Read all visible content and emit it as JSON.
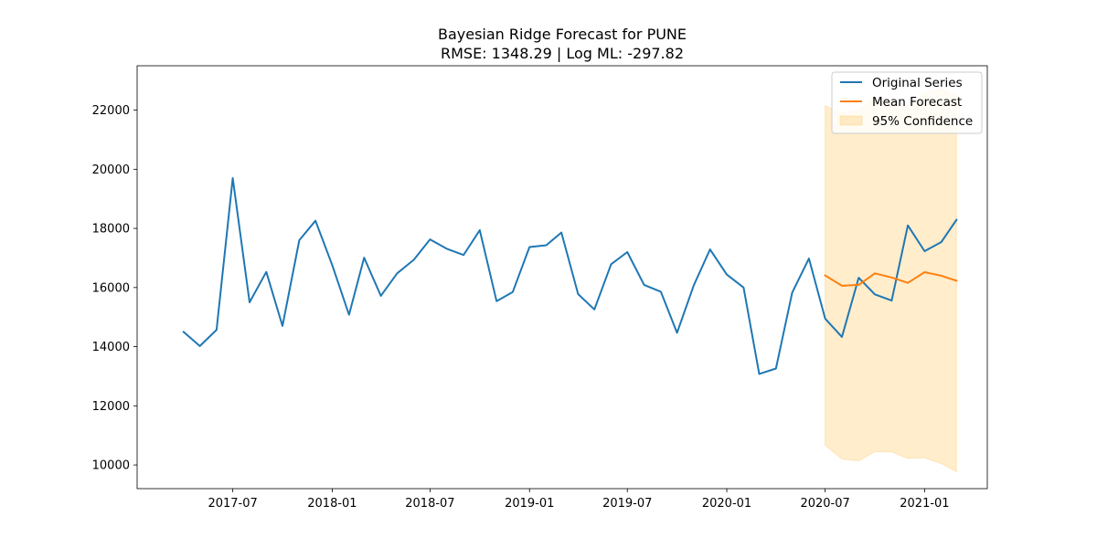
{
  "chart_data": {
    "type": "line",
    "title": "Bayesian Ridge Forecast for PUNE",
    "subtitle": "RMSE: 1348.29 | Log ML: -297.82",
    "xlabel": "",
    "ylabel": "",
    "xlim": [
      "2017-01-05",
      "2021-04-27"
    ],
    "ylim": [
      9200,
      23500
    ],
    "x_ticks": [
      "2017-07-01",
      "2018-01-01",
      "2018-07-01",
      "2019-01-01",
      "2019-07-01",
      "2020-01-01",
      "2020-07-01",
      "2021-01-01"
    ],
    "x_tick_labels": [
      "2017-07",
      "2018-01",
      "2018-07",
      "2019-01",
      "2019-07",
      "2020-01",
      "2020-07",
      "2021-01"
    ],
    "y_ticks": [
      10000,
      12000,
      14000,
      16000,
      18000,
      20000,
      22000
    ],
    "y_tick_labels": [
      "10000",
      "12000",
      "14000",
      "16000",
      "18000",
      "20000",
      "22000"
    ],
    "grid": false,
    "legend_position": "top-right",
    "series": [
      {
        "name": "Original Series",
        "color": "#1f77b4",
        "x": [
          "2017-04-01",
          "2017-05-01",
          "2017-06-01",
          "2017-07-01",
          "2017-08-01",
          "2017-09-01",
          "2017-10-01",
          "2017-11-01",
          "2017-12-01",
          "2018-01-01",
          "2018-02-01",
          "2018-03-01",
          "2018-04-01",
          "2018-05-01",
          "2018-06-01",
          "2018-07-01",
          "2018-08-01",
          "2018-09-01",
          "2018-10-01",
          "2018-11-01",
          "2018-12-01",
          "2019-01-01",
          "2019-02-01",
          "2019-03-01",
          "2019-04-01",
          "2019-05-01",
          "2019-06-01",
          "2019-07-01",
          "2019-08-01",
          "2019-09-01",
          "2019-10-01",
          "2019-11-01",
          "2019-12-01",
          "2020-01-01",
          "2020-02-01",
          "2020-03-01",
          "2020-04-01",
          "2020-05-01",
          "2020-06-01",
          "2020-07-01",
          "2020-08-01",
          "2020-09-01",
          "2020-10-01",
          "2020-11-01",
          "2020-12-01",
          "2021-01-01",
          "2021-02-01",
          "2021-03-01"
        ],
        "values": [
          14500,
          14020,
          14570,
          19700,
          15500,
          16530,
          14700,
          17600,
          18260,
          16760,
          15080,
          17010,
          15720,
          16480,
          16940,
          17630,
          17310,
          17100,
          17940,
          15540,
          15850,
          17370,
          17430,
          17860,
          15780,
          15260,
          16790,
          17200,
          16090,
          15860,
          14470,
          16080,
          17290,
          16440,
          16000,
          13080,
          13260,
          15830,
          16980,
          14950,
          14330,
          16330,
          15770,
          15560,
          18100,
          17230,
          17540,
          18290
        ]
      },
      {
        "name": "Mean Forecast",
        "color": "#ff7f0e",
        "x": [
          "2020-07-01",
          "2020-08-01",
          "2020-09-01",
          "2020-10-01",
          "2020-11-01",
          "2020-12-01",
          "2021-01-01",
          "2021-02-01",
          "2021-03-01"
        ],
        "values": [
          16410,
          16060,
          16090,
          16480,
          16340,
          16160,
          16520,
          16400,
          16230
        ]
      }
    ],
    "confidence_band": {
      "name": "95% Confidence",
      "color": "#ffa500",
      "x": [
        "2020-07-01",
        "2020-08-01",
        "2020-09-01",
        "2020-10-01",
        "2020-11-01",
        "2020-12-01",
        "2021-01-01",
        "2021-02-01",
        "2021-03-01"
      ],
      "lower": [
        10670,
        10200,
        10140,
        10450,
        10440,
        10220,
        10240,
        10050,
        9770
      ],
      "upper": [
        22150,
        21920,
        22000,
        22460,
        22250,
        22100,
        22580,
        22720,
        22500
      ]
    }
  }
}
